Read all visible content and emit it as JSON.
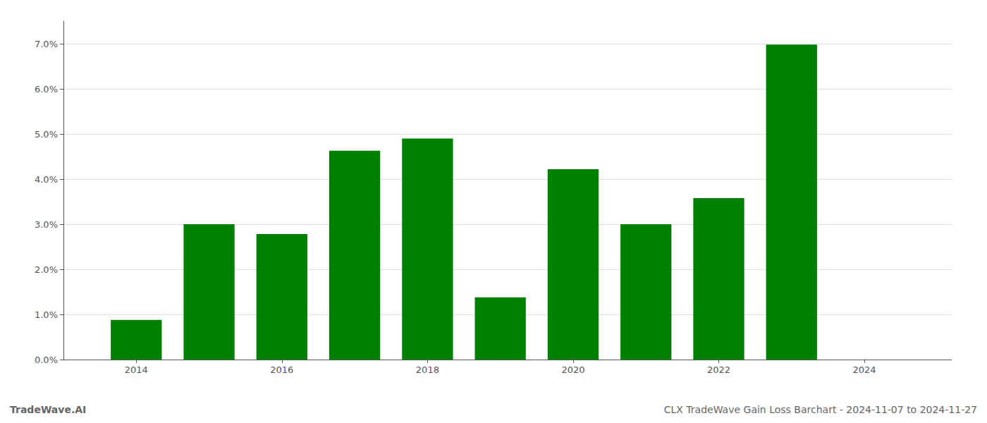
{
  "chart_data": {
    "type": "bar",
    "x": [
      2014,
      2015,
      2016,
      2017,
      2018,
      2019,
      2020,
      2021,
      2022,
      2023
    ],
    "values": [
      0.0088,
      0.03,
      0.0278,
      0.0463,
      0.049,
      0.0138,
      0.0422,
      0.03,
      0.0358,
      0.0698
    ],
    "color": "#008000",
    "xlim": [
      2013.0,
      2025.2
    ],
    "xticks": [
      2014,
      2016,
      2018,
      2020,
      2022,
      2024
    ],
    "ylim": [
      0,
      0.075
    ],
    "yticks": [
      {
        "value": 0.0,
        "label": "0.0%"
      },
      {
        "value": 0.01,
        "label": "1.0%"
      },
      {
        "value": 0.02,
        "label": "2.0%"
      },
      {
        "value": 0.03,
        "label": "3.0%"
      },
      {
        "value": 0.04,
        "label": "4.0%"
      },
      {
        "value": 0.05,
        "label": "5.0%"
      },
      {
        "value": 0.06,
        "label": "6.0%"
      },
      {
        "value": 0.07,
        "label": "7.0%"
      }
    ],
    "grid": true,
    "annotations": [
      "TradeWave.AI",
      "CLX TradeWave Gain Loss Barchart - 2024-11-07 to 2024-11-27"
    ]
  }
}
